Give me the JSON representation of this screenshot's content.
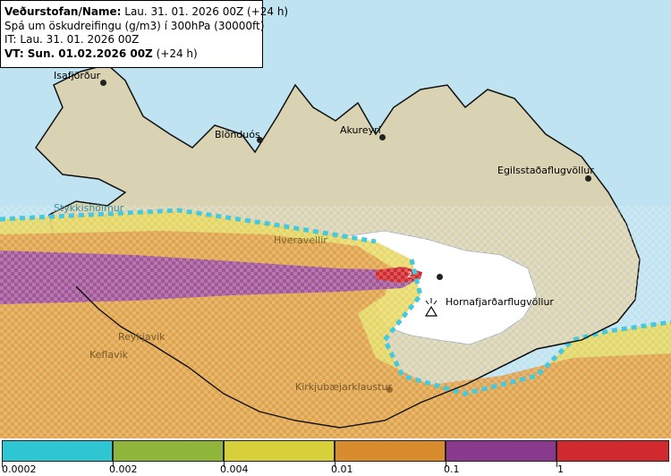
{
  "info": {
    "line1_label": "Veðurstofan/Name:",
    "line1_value": "Lau. 31. 01. 2026 00Z (+24 h)",
    "line2": "Spá um öskudreifingu (g/m3) í 300hPa (30000ft)",
    "line3": "IT: Lau. 31. 01. 2026 00Z",
    "line4_label": "VT: Sun. 01.02.2026 00Z",
    "line4_value": "(+24 h)"
  },
  "cities": [
    {
      "name": "Isafjörður"
    },
    {
      "name": "Blönduós"
    },
    {
      "name": "Akureyri"
    },
    {
      "name": "Egilsstaðaflugvöllur"
    },
    {
      "name": "Stykkishólmur"
    },
    {
      "name": "Hveravellir"
    },
    {
      "name": "Hornafjarðarflugvöllur"
    },
    {
      "name": "Reykjavik"
    },
    {
      "name": "Keflavik"
    },
    {
      "name": "Kirkjubæjarklaustur"
    }
  ],
  "contour_label": "2",
  "volcano_icon": "volcano-triangle-icon",
  "legend": {
    "colors": [
      "#2fc6d3",
      "#8fb53a",
      "#d8d03a",
      "#d98c2e",
      "#8a3a8c",
      "#d02a2f"
    ],
    "ticks": [
      "0.0002",
      "0.002",
      "0.004",
      "0.01",
      "0.1",
      "1"
    ]
  },
  "colors": {
    "sea": "#bfe3f0",
    "land": "#d9d3b4",
    "glacier": "#ffffff",
    "ash_purple": "#9b4f9e",
    "ash_orange": "#e0a04a",
    "ash_yellow": "#e6d55a",
    "ash_cyan": "#46c9dc"
  }
}
